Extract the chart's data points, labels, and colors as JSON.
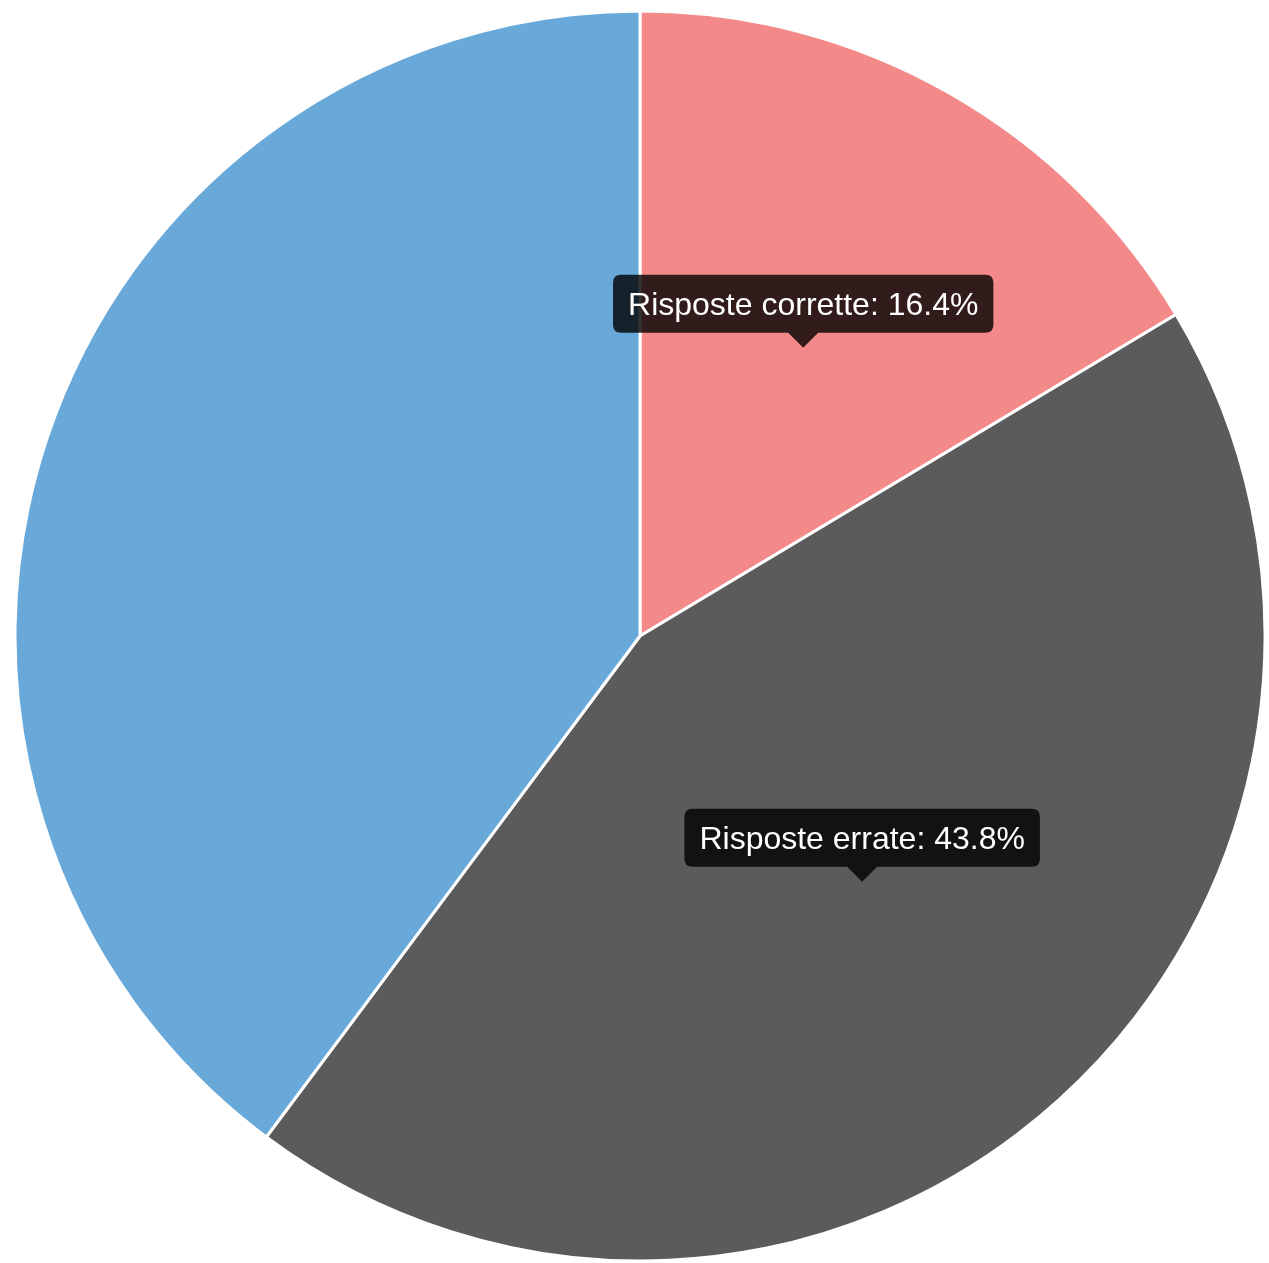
{
  "chart_data": {
    "type": "pie",
    "categories": [
      "Risposte corrette",
      "Risposte errate",
      null
    ],
    "values": [
      16.4,
      43.8,
      39.8
    ],
    "colors": [
      "#f38a89",
      "#5b5b5b",
      "#69a9d9"
    ],
    "value_labels": [
      "16.4%",
      "43.8%",
      null
    ]
  }
}
